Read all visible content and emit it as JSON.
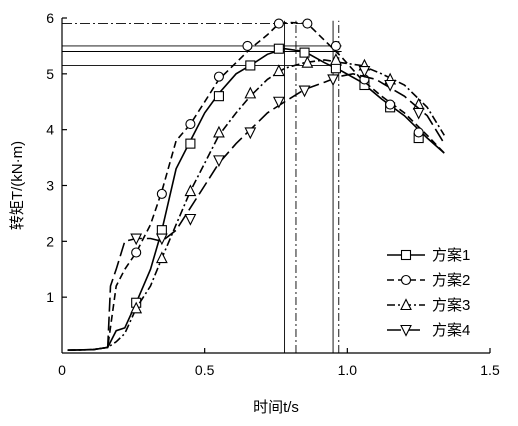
{
  "chart_data": {
    "type": "line",
    "title": "",
    "xlabel": "时间t/s",
    "ylabel": "转矩T/(kN·m)",
    "xlim": [
      0,
      1.5
    ],
    "ylim": [
      0,
      6
    ],
    "x_ticks": [
      "0",
      "0.5",
      "1.0",
      "1.5"
    ],
    "y_ticks": [
      "1",
      "2",
      "3",
      "4",
      "5",
      "6"
    ],
    "grid": false,
    "legend_position": "bottom-right",
    "series": [
      {
        "name": "方案1",
        "dash": "solid",
        "marker": "square",
        "points": [
          [
            0.02,
            0.05
          ],
          [
            0.11,
            0.06
          ],
          [
            0.16,
            0.1
          ],
          [
            0.19,
            0.4
          ],
          [
            0.22,
            0.45
          ],
          [
            0.26,
            0.9
          ],
          [
            0.31,
            1.5
          ],
          [
            0.35,
            2.2
          ],
          [
            0.4,
            3.3
          ],
          [
            0.45,
            3.8
          ],
          [
            0.5,
            4.3
          ],
          [
            0.55,
            4.65
          ],
          [
            0.61,
            5.0
          ],
          [
            0.66,
            5.15
          ],
          [
            0.72,
            5.35
          ],
          [
            0.78,
            5.45
          ],
          [
            0.85,
            5.4
          ],
          [
            0.92,
            5.2
          ],
          [
            0.98,
            5.05
          ],
          [
            1.05,
            4.85
          ],
          [
            1.12,
            4.55
          ],
          [
            1.2,
            4.25
          ],
          [
            1.28,
            3.85
          ],
          [
            1.34,
            3.58
          ]
        ],
        "markers": [
          [
            0.26,
            0.9
          ],
          [
            0.35,
            2.2
          ],
          [
            0.45,
            3.75
          ],
          [
            0.55,
            4.6
          ],
          [
            0.66,
            5.15
          ],
          [
            0.76,
            5.45
          ],
          [
            0.85,
            5.38
          ],
          [
            0.96,
            5.1
          ],
          [
            1.06,
            4.8
          ],
          [
            1.15,
            4.4
          ],
          [
            1.25,
            3.85
          ]
        ]
      },
      {
        "name": "方案2",
        "dash": "dashed",
        "marker": "circle",
        "points": [
          [
            0.02,
            0.05
          ],
          [
            0.11,
            0.06
          ],
          [
            0.16,
            0.1
          ],
          [
            0.19,
            1.2
          ],
          [
            0.22,
            1.5
          ],
          [
            0.26,
            1.8
          ],
          [
            0.31,
            2.3
          ],
          [
            0.35,
            2.9
          ],
          [
            0.4,
            3.8
          ],
          [
            0.45,
            4.1
          ],
          [
            0.5,
            4.5
          ],
          [
            0.55,
            4.9
          ],
          [
            0.61,
            5.2
          ],
          [
            0.66,
            5.45
          ],
          [
            0.72,
            5.7
          ],
          [
            0.76,
            5.9
          ],
          [
            0.8,
            5.92
          ],
          [
            0.86,
            5.9
          ],
          [
            0.92,
            5.6
          ],
          [
            0.98,
            5.3
          ],
          [
            1.05,
            4.9
          ],
          [
            1.12,
            4.6
          ],
          [
            1.2,
            4.3
          ],
          [
            1.28,
            3.9
          ],
          [
            1.34,
            3.58
          ]
        ],
        "markers": [
          [
            0.26,
            1.8
          ],
          [
            0.35,
            2.85
          ],
          [
            0.45,
            4.1
          ],
          [
            0.55,
            4.95
          ],
          [
            0.65,
            5.5
          ],
          [
            0.76,
            5.9
          ],
          [
            0.86,
            5.9
          ],
          [
            0.96,
            5.5
          ],
          [
            1.06,
            4.9
          ],
          [
            1.15,
            4.45
          ],
          [
            1.25,
            3.95
          ]
        ]
      },
      {
        "name": "方案3",
        "dash": "dashdot",
        "marker": "triangle-up",
        "points": [
          [
            0.02,
            0.05
          ],
          [
            0.11,
            0.06
          ],
          [
            0.16,
            0.1
          ],
          [
            0.19,
            0.2
          ],
          [
            0.22,
            0.35
          ],
          [
            0.26,
            0.8
          ],
          [
            0.31,
            1.2
          ],
          [
            0.35,
            1.7
          ],
          [
            0.4,
            2.3
          ],
          [
            0.45,
            2.9
          ],
          [
            0.5,
            3.4
          ],
          [
            0.55,
            3.9
          ],
          [
            0.61,
            4.3
          ],
          [
            0.66,
            4.6
          ],
          [
            0.72,
            4.9
          ],
          [
            0.78,
            5.1
          ],
          [
            0.85,
            5.2
          ],
          [
            0.92,
            5.25
          ],
          [
            0.98,
            5.2
          ],
          [
            1.05,
            5.15
          ],
          [
            1.12,
            5.0
          ],
          [
            1.2,
            4.8
          ],
          [
            1.28,
            4.4
          ],
          [
            1.34,
            3.9
          ]
        ],
        "markers": [
          [
            0.26,
            0.8
          ],
          [
            0.35,
            1.7
          ],
          [
            0.45,
            2.9
          ],
          [
            0.55,
            3.95
          ],
          [
            0.66,
            4.65
          ],
          [
            0.76,
            5.05
          ],
          [
            0.86,
            5.2
          ],
          [
            0.96,
            5.25
          ],
          [
            1.06,
            5.15
          ],
          [
            1.15,
            4.9
          ],
          [
            1.25,
            4.45
          ]
        ]
      },
      {
        "name": "方案4",
        "dash": "longdash",
        "marker": "triangle-down",
        "points": [
          [
            0.02,
            0.05
          ],
          [
            0.11,
            0.06
          ],
          [
            0.16,
            0.1
          ],
          [
            0.17,
            1.2
          ],
          [
            0.19,
            1.5
          ],
          [
            0.22,
            2.0
          ],
          [
            0.26,
            2.05
          ],
          [
            0.31,
            2.05
          ],
          [
            0.35,
            2.0
          ],
          [
            0.4,
            2.2
          ],
          [
            0.45,
            2.6
          ],
          [
            0.5,
            3.0
          ],
          [
            0.55,
            3.4
          ],
          [
            0.61,
            3.75
          ],
          [
            0.66,
            4.0
          ],
          [
            0.72,
            4.3
          ],
          [
            0.78,
            4.5
          ],
          [
            0.85,
            4.72
          ],
          [
            0.92,
            4.85
          ],
          [
            0.97,
            4.95
          ],
          [
            1.02,
            5.0
          ],
          [
            1.1,
            4.9
          ],
          [
            1.2,
            4.6
          ],
          [
            1.28,
            4.25
          ],
          [
            1.34,
            3.75
          ]
        ],
        "markers": [
          [
            0.26,
            2.05
          ],
          [
            0.35,
            2.05
          ],
          [
            0.45,
            2.4
          ],
          [
            0.55,
            3.45
          ],
          [
            0.66,
            3.95
          ],
          [
            0.76,
            4.5
          ],
          [
            0.85,
            4.7
          ],
          [
            0.95,
            4.9
          ],
          [
            1.06,
            5.05
          ],
          [
            1.15,
            4.8
          ],
          [
            1.25,
            4.3
          ]
        ]
      }
    ],
    "reference_lines": {
      "horizontal": [
        5.9,
        5.5,
        5.4,
        5.15
      ],
      "vertical": [
        0.78,
        0.82,
        0.95,
        0.97
      ]
    }
  }
}
